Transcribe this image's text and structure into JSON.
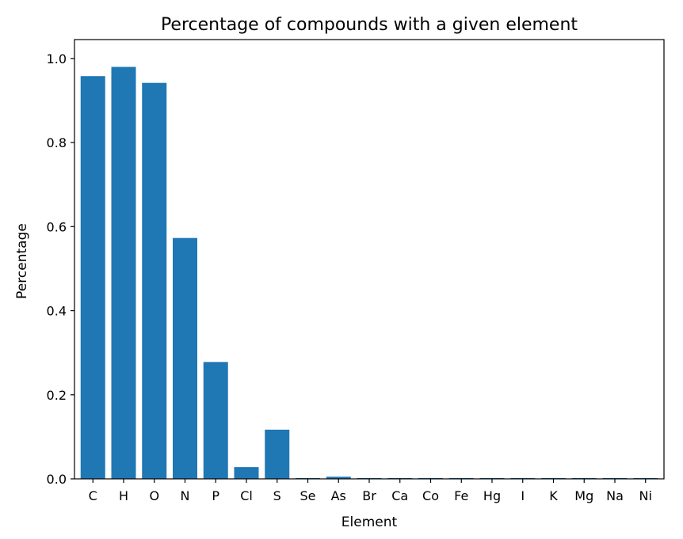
{
  "chart_data": {
    "type": "bar",
    "title": "Percentage of compounds with a given element",
    "xlabel": "Element",
    "ylabel": "Percentage",
    "categories": [
      "C",
      "H",
      "O",
      "N",
      "P",
      "Cl",
      "S",
      "Se",
      "As",
      "Br",
      "Ca",
      "Co",
      "Fe",
      "Hg",
      "I",
      "K",
      "Mg",
      "Na",
      "Ni"
    ],
    "values": [
      0.958,
      0.98,
      0.942,
      0.573,
      0.278,
      0.028,
      0.117,
      0.002,
      0.005,
      0.002,
      0.002,
      0.002,
      0.002,
      0.002,
      0.002,
      0.002,
      0.002,
      0.002,
      0.002
    ],
    "ylim": [
      0,
      1.045
    ],
    "yticks": [
      0.0,
      0.2,
      0.4,
      0.6,
      0.8,
      1.0
    ],
    "ytick_labels": [
      "0.0",
      "0.2",
      "0.4",
      "0.6",
      "0.8",
      "1.0"
    ],
    "bar_color": "#1f77b4",
    "grid": false,
    "legend": "none"
  }
}
